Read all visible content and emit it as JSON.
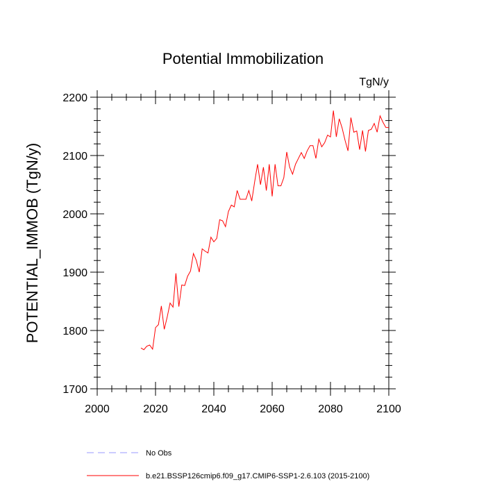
{
  "chart_data": {
    "type": "line",
    "title": "Potential Immobilization",
    "units_label": "TgN/y",
    "xlabel": "",
    "ylabel": "POTENTIAL_IMMOB  (TgN/y)",
    "xlim": [
      2000,
      2100
    ],
    "ylim": [
      1700,
      2200
    ],
    "xticks": [
      2000,
      2020,
      2040,
      2060,
      2080,
      2100
    ],
    "yticks": [
      1700,
      1800,
      1900,
      2000,
      2100,
      2200
    ],
    "xminor_step": 5,
    "yminor_step": 20,
    "series": [
      {
        "name": "b.e21.BSSP126cmip6.f09_g17.CMIP6-SSP1-2.6.103 (2015-2100)",
        "color": "#ff0000",
        "style": "solid",
        "x": [
          2015,
          2016,
          2017,
          2018,
          2019,
          2020,
          2021,
          2022,
          2023,
          2024,
          2025,
          2026,
          2027,
          2028,
          2029,
          2030,
          2031,
          2032,
          2033,
          2034,
          2035,
          2036,
          2037,
          2038,
          2039,
          2040,
          2041,
          2042,
          2043,
          2044,
          2045,
          2046,
          2047,
          2048,
          2049,
          2050,
          2051,
          2052,
          2053,
          2054,
          2055,
          2056,
          2057,
          2058,
          2059,
          2060,
          2061,
          2062,
          2063,
          2064,
          2065,
          2066,
          2067,
          2068,
          2069,
          2070,
          2071,
          2072,
          2073,
          2074,
          2075,
          2076,
          2077,
          2078,
          2079,
          2080,
          2081,
          2082,
          2083,
          2084,
          2085,
          2086,
          2087,
          2088,
          2089,
          2090,
          2091,
          2092,
          2093,
          2094,
          2095,
          2096,
          2097,
          2098,
          2099,
          2100
        ],
        "values": [
          1770,
          1767,
          1773,
          1775,
          1768,
          1805,
          1810,
          1842,
          1802,
          1823,
          1847,
          1840,
          1898,
          1841,
          1878,
          1877,
          1893,
          1902,
          1932,
          1920,
          1900,
          1940,
          1936,
          1933,
          1960,
          1952,
          1958,
          1990,
          1988,
          1978,
          2004,
          2015,
          2012,
          2040,
          2025,
          2025,
          2025,
          2040,
          2022,
          2055,
          2085,
          2050,
          2080,
          2040,
          2085,
          2030,
          2085,
          2048,
          2048,
          2062,
          2106,
          2080,
          2068,
          2085,
          2095,
          2105,
          2095,
          2108,
          2117,
          2117,
          2095,
          2128,
          2115,
          2122,
          2135,
          2132,
          2177,
          2132,
          2163,
          2147,
          2126,
          2108,
          2165,
          2140,
          2142,
          2110,
          2143,
          2107,
          2143,
          2145,
          2155,
          2140,
          2168,
          2157,
          2148,
          2148
        ]
      },
      {
        "name": "No Obs",
        "color": "#9999ff",
        "style": "dashed",
        "x": [],
        "values": []
      }
    ]
  }
}
